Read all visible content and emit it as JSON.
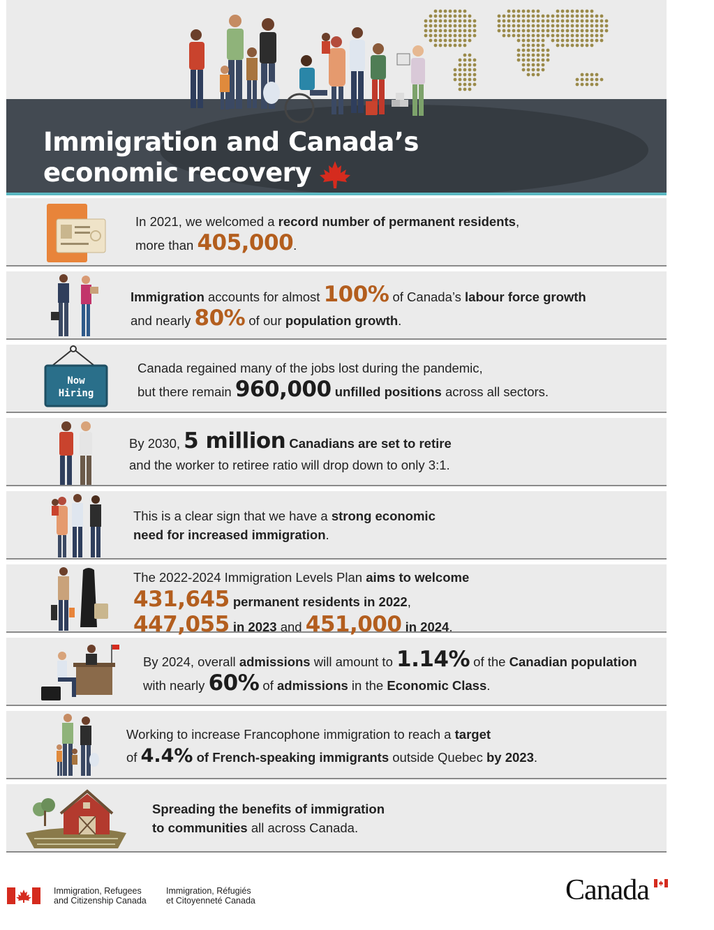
{
  "header": {
    "title_line1": "Immigration and Canada’s",
    "title_line2": "economic recovery"
  },
  "rows": [
    {
      "icon": "passport-card-icon",
      "text_a": "In 2021, we welcomed a ",
      "text_b": "record number of permanent residents",
      "text_c": ",",
      "text_d": "more than ",
      "value": "405,000",
      "text_e": "."
    },
    {
      "icon": "workers-icon",
      "text_a": "Immigration",
      "text_b": " accounts for almost ",
      "value1": "100%",
      "text_c": " of Canada’s ",
      "text_d": "labour force growth",
      "text_e": "and nearly ",
      "value2": "80%",
      "text_f": " of our ",
      "text_g": "population growth",
      "text_h": "."
    },
    {
      "icon": "now-hiring-sign-icon",
      "sign_line1": "Now",
      "sign_line2": "Hiring",
      "text_a": "Canada regained many of the jobs lost during the pandemic,",
      "text_b": "but there remain ",
      "value": "960,000",
      "text_c": " unfilled positions",
      "text_d": " across all sectors."
    },
    {
      "icon": "retirees-icon",
      "text_a": "By 2030, ",
      "value": "5 million",
      "text_b": " Canadians are set to retire",
      "text_c": "and the worker to retiree ratio will drop down to only 3:1."
    },
    {
      "icon": "family-icon",
      "text_a": "This is a clear sign that we have a ",
      "text_b": "strong economic",
      "text_c": "need for increased immigration",
      "text_d": "."
    },
    {
      "icon": "travelers-icon",
      "text_a": "The 2022-2024 Immigration Levels Plan ",
      "text_b": "aims to welcome",
      "value1": "431,645",
      "text_c": " permanent residents in 2022",
      "text_d": ",",
      "value2": "447,055",
      "text_e": " in 2023",
      "text_f": " and ",
      "value3": "451,000",
      "text_g": " in 2024",
      "text_h": "."
    },
    {
      "icon": "office-desk-icon",
      "text_a": "By 2024, overall ",
      "text_b": "admissions",
      "text_c": " will amount to ",
      "value1": "1.14%",
      "text_d": " of the ",
      "text_e": "Canadian population",
      "text_f": "with nearly ",
      "value2": "60%",
      "text_g": " of ",
      "text_h": "admissions",
      "text_i": " in the ",
      "text_j": "Economic Class",
      "text_k": "."
    },
    {
      "icon": "francophone-family-icon",
      "text_a": "Working to increase Francophone immigration to reach a ",
      "text_b": "target",
      "text_c": "of ",
      "value": "4.4%",
      "text_d": " of French-speaking immigrants",
      "text_e": " outside Quebec ",
      "text_f": "by 2023",
      "text_g": "."
    },
    {
      "icon": "farm-barn-icon",
      "text_a": "Spreading the benefits of immigration",
      "text_b": "to communities",
      "text_c": " all across Canada."
    }
  ],
  "footer": {
    "dept_en": "Immigration, Refugees\nand Citizenship Canada",
    "dept_fr": "Immigration, Réfugiés\net Citoyenneté Canada",
    "wordmark": "Canada"
  },
  "colors": {
    "accent_orange": "#b35e1e",
    "band": "#434a52",
    "row_bg": "#ebebeb",
    "flag_red": "#d52b1e",
    "teal": "#5bb8c2"
  }
}
